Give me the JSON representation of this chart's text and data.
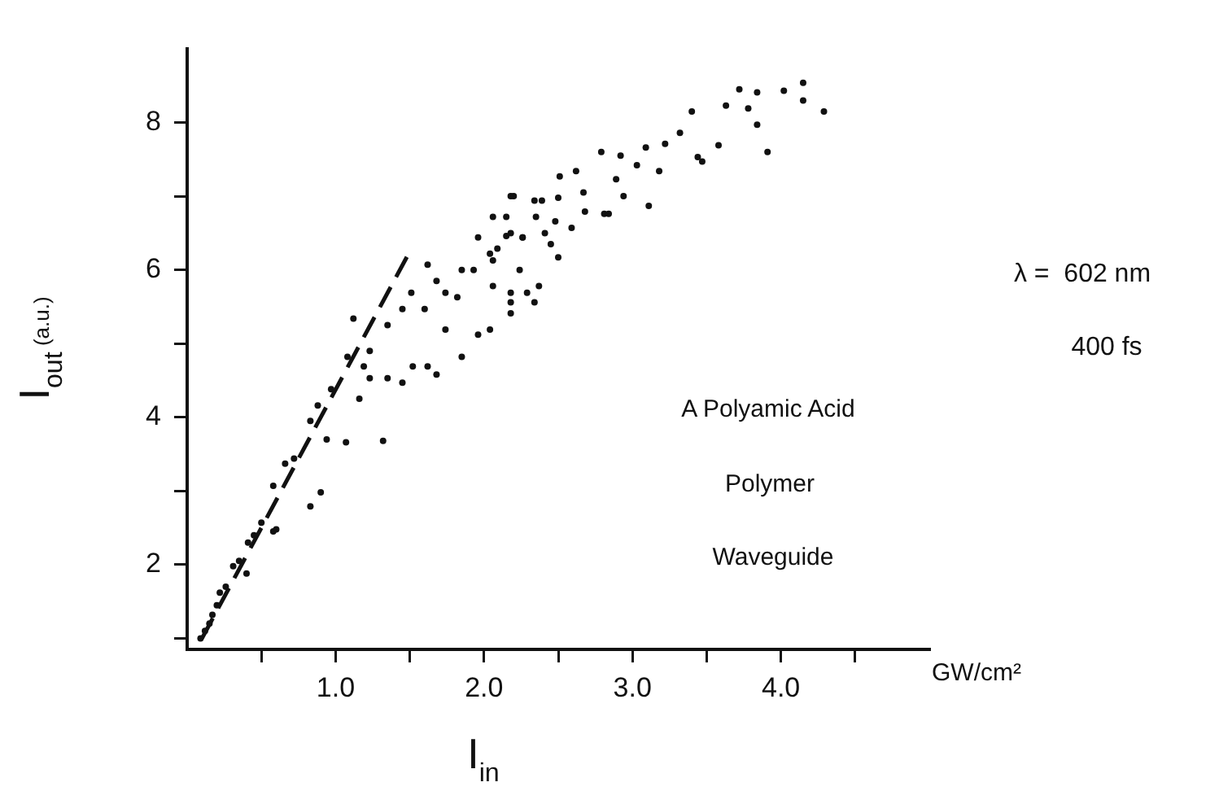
{
  "chart_data": {
    "type": "scatter",
    "xlabel": "I$_{in}$",
    "ylabel": "I$_{out}$ (a.u.)",
    "annotations": [
      "λ =  602 nm",
      "400 fs",
      "A Polyamic Acid",
      "Polymer",
      "Waveguide",
      "GW/cm²"
    ],
    "xlim": [
      0,
      5
    ],
    "ylim": [
      0.85,
      9
    ],
    "xticks": [
      {
        "value": 0.5,
        "label": null
      },
      {
        "value": 1,
        "label": "1.0"
      },
      {
        "value": 1.5,
        "label": null
      },
      {
        "value": 2,
        "label": "2.0"
      },
      {
        "value": 2.5,
        "label": null
      },
      {
        "value": 3,
        "label": "3.0"
      },
      {
        "value": 3.5,
        "label": null
      },
      {
        "value": 4,
        "label": "4.0"
      },
      {
        "value": 4.5,
        "label": null
      }
    ],
    "yticks": [
      {
        "value": 1,
        "label": null
      },
      2,
      {
        "value": 3,
        "label": null
      },
      4,
      {
        "value": 5,
        "label": null
      },
      6,
      {
        "value": 7,
        "label": null
      },
      8
    ],
    "grid": false,
    "legend": false,
    "series": [
      {
        "color": "#111111",
        "marker": "circle",
        "x": [
          0.09,
          0.17,
          0.22,
          0.31,
          0.41,
          0.5,
          0.58,
          0.72,
          0.83,
          0.88,
          0.97,
          1.08,
          1.12,
          0.94,
          1.07,
          1.32,
          0.83,
          0.9,
          0.6,
          0.4,
          1.19,
          1.23,
          1.35,
          1.45,
          1.51,
          1.6,
          1.52,
          1.45,
          1.62,
          1.68,
          1.74,
          1.74,
          1.82,
          1.85,
          1.93,
          1.85,
          1.96,
          2.04,
          2.06,
          2.04,
          2.18,
          2.18,
          2.34,
          2.34,
          2.26,
          2.15,
          2.18,
          2.06,
          1.96,
          1.68,
          1.62,
          1.35,
          1.16,
          1.23,
          0.66,
          0.58,
          3.72,
          3.84,
          4.02,
          4.15,
          4.15,
          4.29,
          3.63,
          3.78,
          3.84,
          3.91,
          3.4,
          3.58,
          3.32,
          3.44,
          3.47,
          3.22,
          3.18,
          3.09,
          3.03,
          2.92,
          2.79,
          2.89,
          2.94,
          3.11,
          2.81,
          2.68,
          2.67,
          2.62,
          2.51,
          2.5,
          2.48,
          2.59,
          2.39,
          2.35,
          2.41,
          2.5,
          2.45,
          2.37,
          2.29,
          2.18,
          2.18,
          2.24,
          2.15,
          2.26,
          2.2,
          2.09,
          2.06,
          2.84,
          0.12,
          0.15,
          0.2,
          0.26,
          0.35,
          0.45
        ],
        "values": [
          1.0,
          1.32,
          1.62,
          1.98,
          2.3,
          2.57,
          3.07,
          3.44,
          3.95,
          4.16,
          4.38,
          4.82,
          5.34,
          3.7,
          3.66,
          3.68,
          2.79,
          2.98,
          2.48,
          1.88,
          4.69,
          4.9,
          5.25,
          5.47,
          5.69,
          5.47,
          4.69,
          4.47,
          4.69,
          4.58,
          5.19,
          5.69,
          5.63,
          6.0,
          6.0,
          4.82,
          5.12,
          5.19,
          5.78,
          6.22,
          6.5,
          5.56,
          5.56,
          6.94,
          6.44,
          6.72,
          7.0,
          6.72,
          6.44,
          5.85,
          6.07,
          4.53,
          4.25,
          4.53,
          3.37,
          2.45,
          8.45,
          8.41,
          8.43,
          8.54,
          8.3,
          8.15,
          8.23,
          8.19,
          7.97,
          7.6,
          8.15,
          7.69,
          7.86,
          7.53,
          7.47,
          7.71,
          7.34,
          7.66,
          7.42,
          7.55,
          7.6,
          7.23,
          7.0,
          6.87,
          6.76,
          6.79,
          7.05,
          7.34,
          7.27,
          6.98,
          6.66,
          6.57,
          6.94,
          6.72,
          6.5,
          6.17,
          6.35,
          5.78,
          5.69,
          5.69,
          5.41,
          6.0,
          6.46,
          6.44,
          7.0,
          6.29,
          6.13,
          6.76,
          1.1,
          1.2,
          1.45,
          1.7,
          2.05,
          2.4
        ]
      },
      {
        "type": "line",
        "color": "#111111",
        "line_style": "dashed",
        "marker": "none",
        "x": [
          0.1,
          1.5
        ],
        "values": [
          1.0,
          6.25
        ]
      }
    ]
  }
}
